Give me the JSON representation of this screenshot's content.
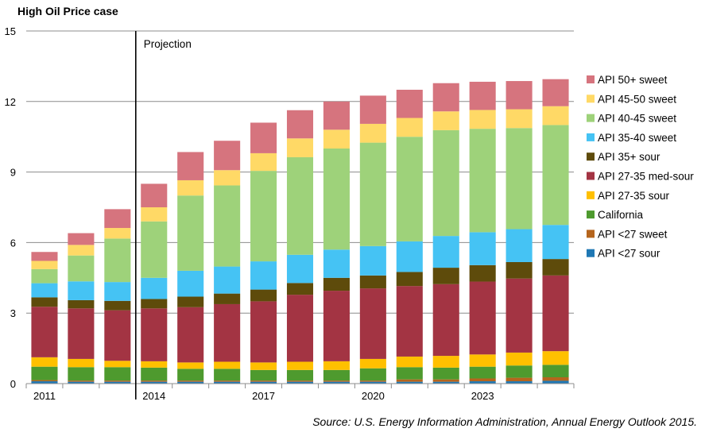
{
  "chart_data": {
    "type": "bar",
    "stacked": true,
    "title": "High Oil Price case",
    "xlabel": "",
    "ylabel": "",
    "ylim": [
      0,
      15
    ],
    "yticks": [
      0,
      3,
      6,
      9,
      12,
      15
    ],
    "categories": [
      "2011",
      "2012",
      "2013",
      "2014",
      "2015",
      "2016",
      "2017",
      "2018",
      "2019",
      "2020",
      "2021",
      "2022",
      "2023",
      "2024",
      "2025"
    ],
    "x_tick_labels": [
      "2011",
      "",
      "",
      "2014",
      "",
      "",
      "2017",
      "",
      "",
      "2020",
      "",
      "",
      "2023",
      "",
      ""
    ],
    "grid": "horizontal",
    "legend_position": "right",
    "annotation": {
      "label": "Projection",
      "at_category_boundary": "2013-2014"
    },
    "source": "Source: U.S. Energy Information Administration, Annual Energy Outlook 2015.",
    "series": [
      {
        "name": "API <27 sour",
        "color": "#1F78B4",
        "values": [
          0.1,
          0.08,
          0.08,
          0.08,
          0.08,
          0.08,
          0.08,
          0.08,
          0.08,
          0.08,
          0.08,
          0.08,
          0.1,
          0.1,
          0.12
        ]
      },
      {
        "name": "API <27 sweet",
        "color": "#B5651D",
        "values": [
          0.05,
          0.05,
          0.05,
          0.05,
          0.05,
          0.05,
          0.05,
          0.05,
          0.05,
          0.05,
          0.1,
          0.1,
          0.12,
          0.15,
          0.15
        ]
      },
      {
        "name": "California",
        "color": "#4E9A2E",
        "values": [
          0.57,
          0.57,
          0.57,
          0.55,
          0.5,
          0.5,
          0.45,
          0.45,
          0.45,
          0.52,
          0.52,
          0.5,
          0.5,
          0.52,
          0.53
        ]
      },
      {
        "name": "API 27-35 sour",
        "color": "#FFC000",
        "values": [
          0.4,
          0.35,
          0.27,
          0.27,
          0.27,
          0.3,
          0.32,
          0.35,
          0.37,
          0.4,
          0.45,
          0.5,
          0.52,
          0.55,
          0.58
        ]
      },
      {
        "name": "API 27-35 med-sour",
        "color": "#A33443",
        "values": [
          2.15,
          2.15,
          2.15,
          2.25,
          2.35,
          2.45,
          2.6,
          2.85,
          3.0,
          3.0,
          3.0,
          3.05,
          3.1,
          3.15,
          3.22
        ]
      },
      {
        "name": "API 35+ sour",
        "color": "#5E4B0B",
        "values": [
          0.4,
          0.35,
          0.4,
          0.4,
          0.45,
          0.45,
          0.5,
          0.5,
          0.55,
          0.55,
          0.6,
          0.7,
          0.7,
          0.7,
          0.7
        ]
      },
      {
        "name": "API 35-40 sweet",
        "color": "#45C3F4",
        "values": [
          0.6,
          0.8,
          0.8,
          0.9,
          1.1,
          1.15,
          1.2,
          1.2,
          1.2,
          1.25,
          1.3,
          1.35,
          1.4,
          1.4,
          1.45
        ]
      },
      {
        "name": "API 40-45 sweet",
        "color": "#9ED27A",
        "values": [
          0.6,
          1.1,
          1.85,
          2.4,
          3.2,
          3.45,
          3.85,
          4.15,
          4.3,
          4.4,
          4.45,
          4.5,
          4.4,
          4.3,
          4.25
        ]
      },
      {
        "name": "API 45-50 sweet",
        "color": "#FFD966",
        "values": [
          0.35,
          0.45,
          0.45,
          0.6,
          0.65,
          0.65,
          0.75,
          0.8,
          0.8,
          0.8,
          0.8,
          0.8,
          0.8,
          0.8,
          0.8
        ]
      },
      {
        "name": "API 50+ sweet",
        "color": "#D6747E",
        "values": [
          0.38,
          0.5,
          0.8,
          1.0,
          1.2,
          1.25,
          1.3,
          1.2,
          1.2,
          1.2,
          1.2,
          1.2,
          1.2,
          1.2,
          1.15
        ]
      }
    ]
  }
}
